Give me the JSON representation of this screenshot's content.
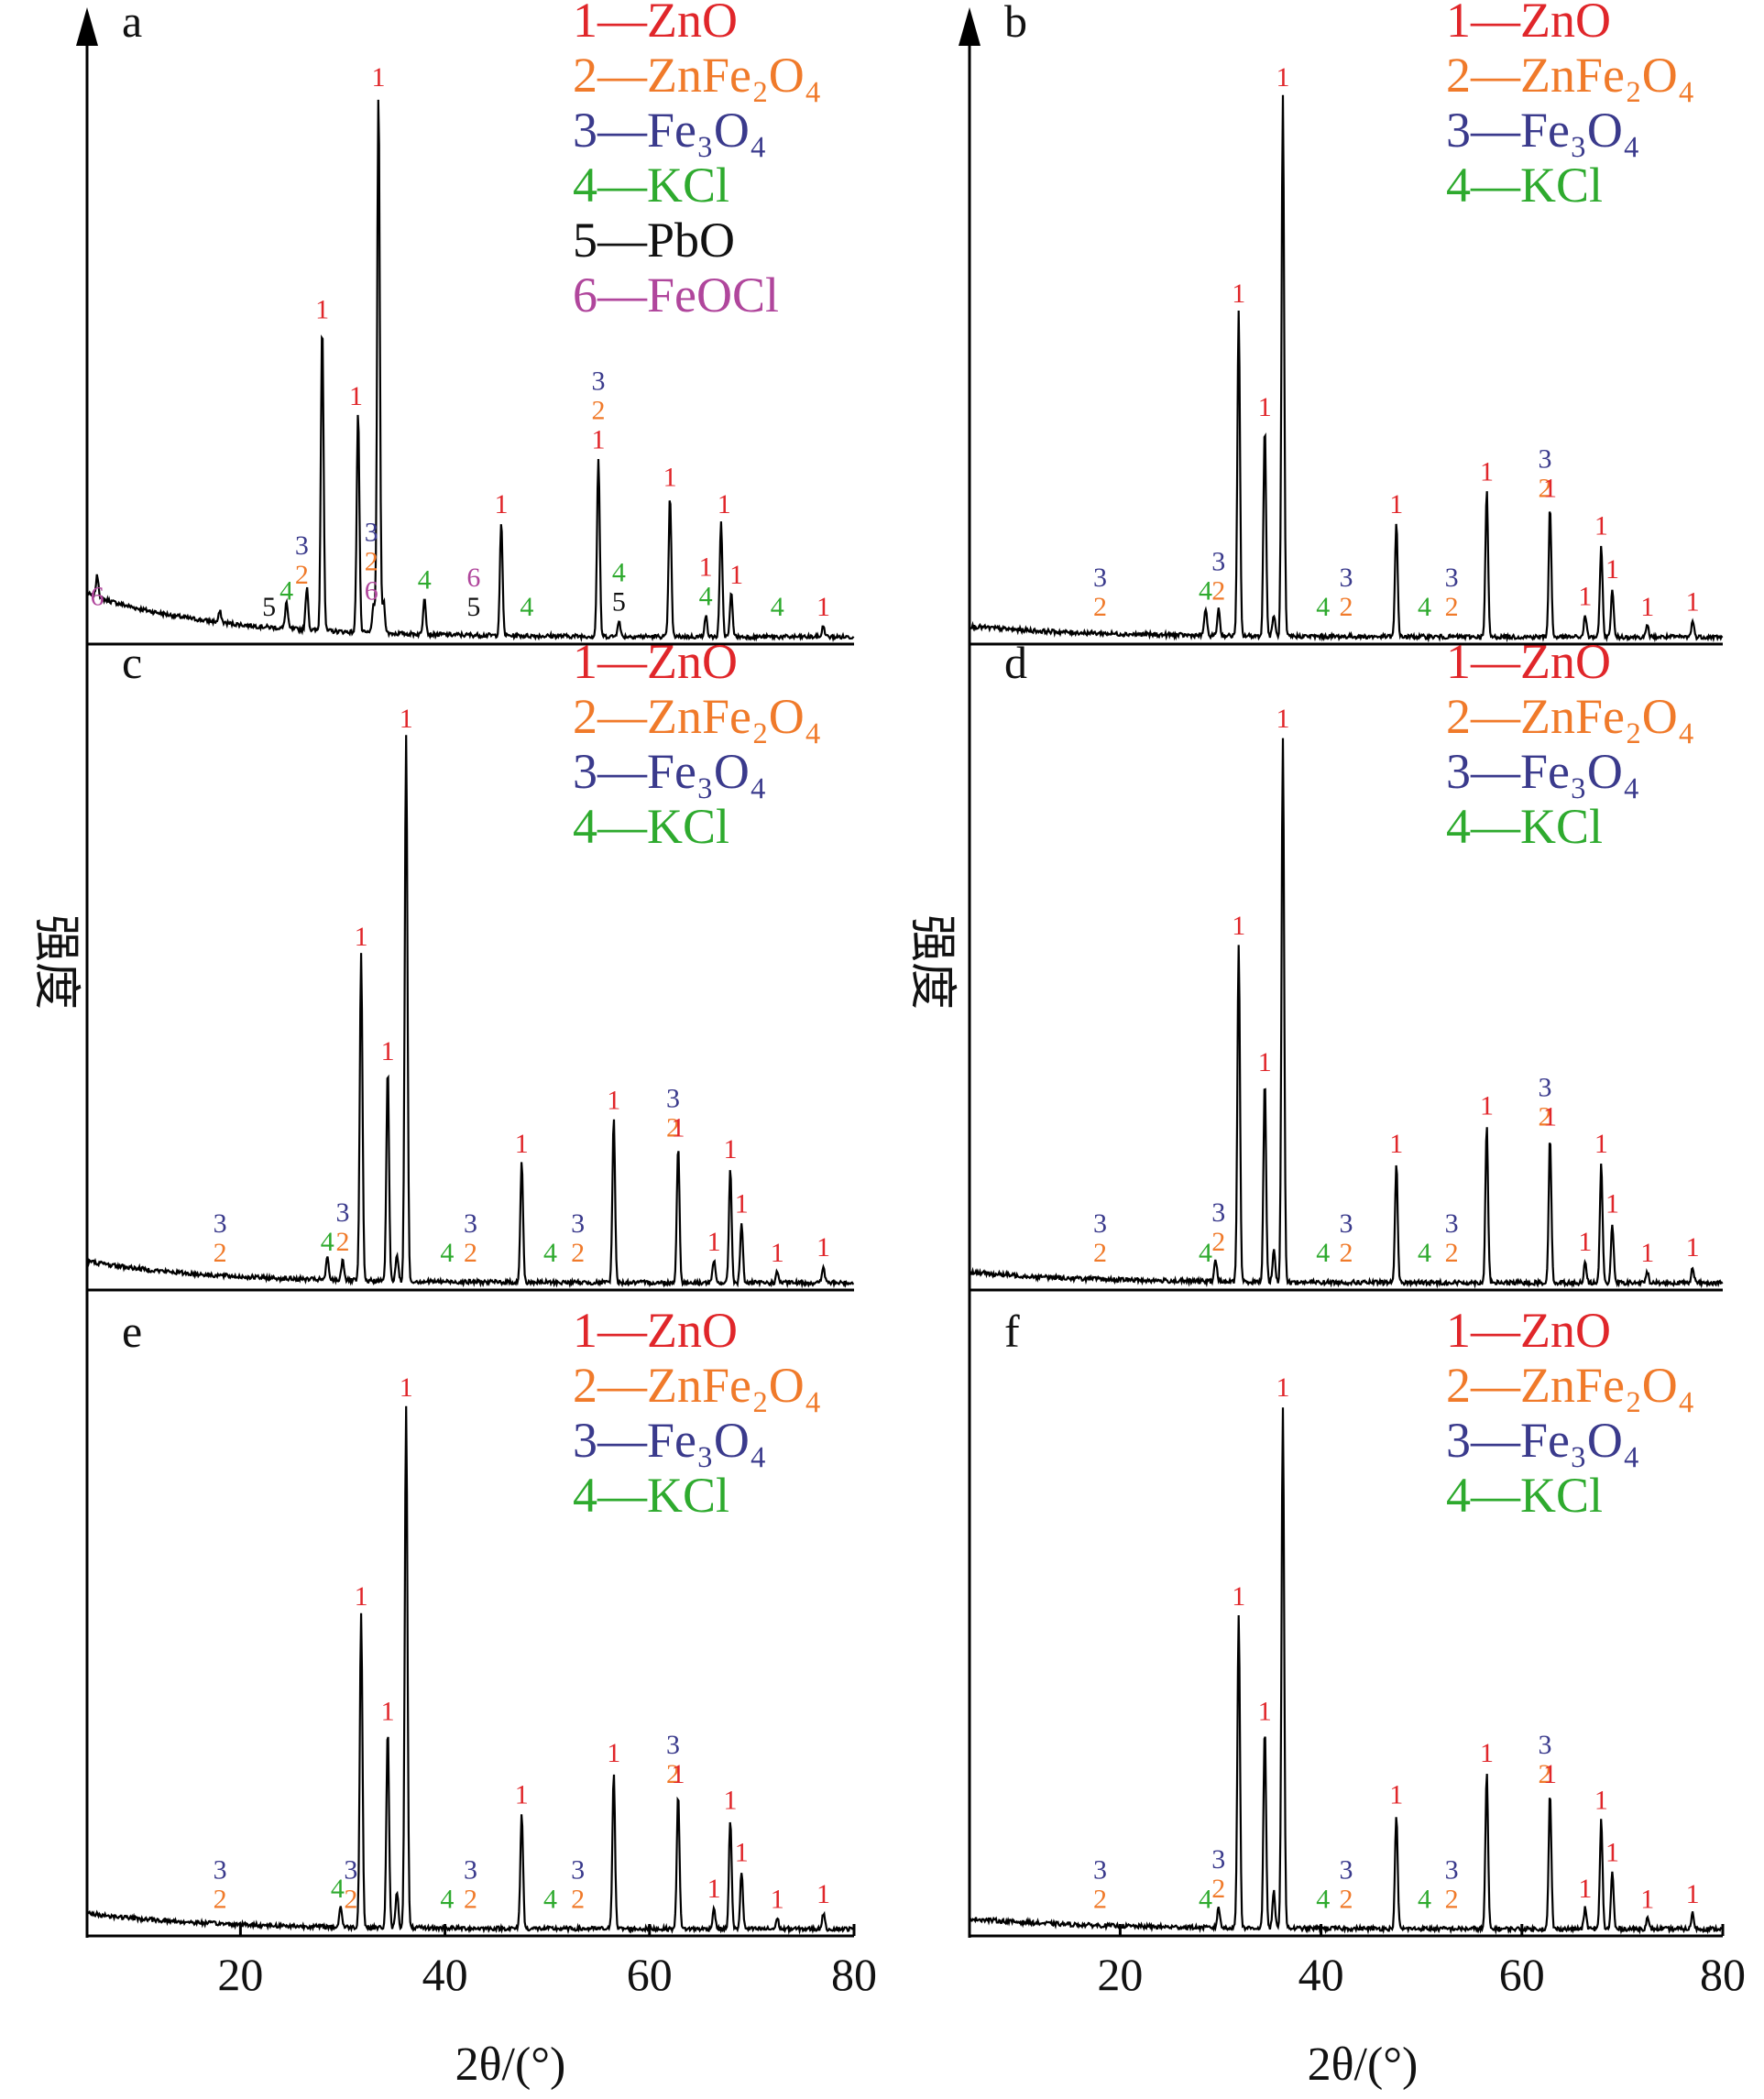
{
  "figure": {
    "y_axis_label": "强度",
    "x_axis_label": "2θ/(°)",
    "x_ticks": [
      "20",
      "40",
      "60",
      "80"
    ]
  },
  "phase_colors": {
    "1": "#e0262a",
    "2": "#f07a2a",
    "3": "#3a3a8c",
    "4": "#2eaa2e",
    "5": "#111111",
    "6": "#b0469c"
  },
  "chart_data": [
    {
      "type": "line",
      "panel": "a",
      "xlim": [
        5,
        80
      ],
      "legend": [
        {
          "id": "1",
          "text": "1—ZnO"
        },
        {
          "id": "2",
          "text": "2—ZnFe₂O₄"
        },
        {
          "id": "3",
          "text": "3—Fe₃O₄"
        },
        {
          "id": "4",
          "text": "4—KCl"
        },
        {
          "id": "5",
          "text": "5—PbO"
        },
        {
          "id": "6",
          "text": "6—FeOCl"
        }
      ],
      "peaks": [
        [
          6.0,
          0.04
        ],
        [
          18.0,
          0.02
        ],
        [
          24.5,
          0.05
        ],
        [
          26.5,
          0.08
        ],
        [
          28.0,
          0.57
        ],
        [
          31.5,
          0.41
        ],
        [
          33.0,
          0.05
        ],
        [
          33.5,
          1.0
        ],
        [
          34.0,
          0.06
        ],
        [
          38.0,
          0.07
        ],
        [
          45.5,
          0.21
        ],
        [
          55.0,
          0.33
        ],
        [
          57.0,
          0.03
        ],
        [
          62.0,
          0.26
        ],
        [
          65.5,
          0.04
        ],
        [
          67.0,
          0.21
        ],
        [
          68.0,
          0.08
        ],
        [
          77.0,
          0.02
        ]
      ],
      "background_start": 0.08,
      "labels": [
        {
          "x": 6.0,
          "stack": [
            "6"
          ]
        },
        {
          "x": 22.8,
          "stack": [
            "5"
          ]
        },
        {
          "x": 24.5,
          "stack": [
            "4"
          ]
        },
        {
          "x": 26.0,
          "stack": [
            "3",
            "2"
          ]
        },
        {
          "x": 28.0,
          "stack": [
            "1"
          ]
        },
        {
          "x": 31.3,
          "stack": [
            "1"
          ]
        },
        {
          "x": 32.8,
          "stack": [
            "3",
            "2",
            "6"
          ]
        },
        {
          "x": 33.5,
          "stack": [
            "1"
          ]
        },
        {
          "x": 38.0,
          "stack": [
            "4"
          ]
        },
        {
          "x": 42.8,
          "stack": [
            "6",
            "5"
          ]
        },
        {
          "x": 45.5,
          "stack": [
            "1"
          ]
        },
        {
          "x": 48.0,
          "stack": [
            "4"
          ]
        },
        {
          "x": 55.0,
          "stack": [
            "3",
            "2",
            "1"
          ]
        },
        {
          "x": 57.0,
          "stack": [
            "4",
            "5"
          ]
        },
        {
          "x": 62.0,
          "stack": [
            "1"
          ]
        },
        {
          "x": 65.5,
          "stack": [
            "1",
            "4"
          ]
        },
        {
          "x": 67.3,
          "stack": [
            "1"
          ]
        },
        {
          "x": 68.5,
          "stack": [
            "1"
          ]
        },
        {
          "x": 72.5,
          "stack": [
            "4"
          ]
        },
        {
          "x": 77.0,
          "stack": [
            "1"
          ]
        }
      ]
    },
    {
      "type": "line",
      "panel": "b",
      "xlim": [
        5,
        80
      ],
      "legend": [
        {
          "id": "1",
          "text": "1—ZnO"
        },
        {
          "id": "2",
          "text": "2—ZnFe₂O₄"
        },
        {
          "id": "3",
          "text": "3—Fe₃O₄"
        },
        {
          "id": "4",
          "text": "4—KCl"
        }
      ],
      "peaks": [
        [
          28.5,
          0.05
        ],
        [
          29.8,
          0.05
        ],
        [
          31.8,
          0.6
        ],
        [
          34.4,
          0.39
        ],
        [
          35.3,
          0.04
        ],
        [
          36.2,
          1.0
        ],
        [
          47.5,
          0.21
        ],
        [
          56.5,
          0.27
        ],
        [
          62.8,
          0.24
        ],
        [
          66.3,
          0.04
        ],
        [
          67.9,
          0.17
        ],
        [
          69.0,
          0.09
        ],
        [
          72.5,
          0.02
        ],
        [
          77.0,
          0.03
        ]
      ],
      "background_start": 0.02,
      "labels": [
        {
          "x": 18.0,
          "stack": [
            "3",
            "2"
          ]
        },
        {
          "x": 28.5,
          "stack": [
            "4"
          ]
        },
        {
          "x": 29.8,
          "stack": [
            "3",
            "2"
          ]
        },
        {
          "x": 31.8,
          "stack": [
            "1"
          ]
        },
        {
          "x": 34.4,
          "stack": [
            "1"
          ]
        },
        {
          "x": 36.2,
          "stack": [
            "1"
          ]
        },
        {
          "x": 40.2,
          "stack": [
            "4"
          ]
        },
        {
          "x": 42.5,
          "stack": [
            "3",
            "2"
          ]
        },
        {
          "x": 47.5,
          "stack": [
            "1"
          ]
        },
        {
          "x": 50.3,
          "stack": [
            "4"
          ]
        },
        {
          "x": 53.0,
          "stack": [
            "3",
            "2"
          ]
        },
        {
          "x": 56.5,
          "stack": [
            "1"
          ]
        },
        {
          "x": 62.3,
          "stack": [
            "3",
            "2"
          ]
        },
        {
          "x": 62.8,
          "stack": [
            "1"
          ]
        },
        {
          "x": 66.3,
          "stack": [
            "1"
          ]
        },
        {
          "x": 67.9,
          "stack": [
            "1"
          ]
        },
        {
          "x": 69.0,
          "stack": [
            "1"
          ]
        },
        {
          "x": 72.5,
          "stack": [
            "1"
          ]
        },
        {
          "x": 77.0,
          "stack": [
            "1"
          ]
        }
      ]
    },
    {
      "type": "line",
      "panel": "c",
      "xlim": [
        5,
        80
      ],
      "legend": [
        {
          "id": "1",
          "text": "1—ZnO"
        },
        {
          "id": "2",
          "text": "2—ZnFe₂O₄"
        },
        {
          "id": "3",
          "text": "3—Fe₃O₄"
        },
        {
          "id": "4",
          "text": "4—KCl"
        }
      ],
      "peaks": [
        [
          28.5,
          0.04
        ],
        [
          30.0,
          0.04
        ],
        [
          31.8,
          0.6
        ],
        [
          34.4,
          0.39
        ],
        [
          35.3,
          0.05
        ],
        [
          36.2,
          1.0
        ],
        [
          47.5,
          0.22
        ],
        [
          56.5,
          0.3
        ],
        [
          62.8,
          0.25
        ],
        [
          66.3,
          0.04
        ],
        [
          67.9,
          0.21
        ],
        [
          69.0,
          0.11
        ],
        [
          72.5,
          0.02
        ],
        [
          77.0,
          0.03
        ]
      ],
      "background_start": 0.04,
      "labels": [
        {
          "x": 18.0,
          "stack": [
            "3",
            "2"
          ]
        },
        {
          "x": 28.5,
          "stack": [
            "4"
          ]
        },
        {
          "x": 30.0,
          "stack": [
            "3",
            "2"
          ]
        },
        {
          "x": 31.8,
          "stack": [
            "1"
          ]
        },
        {
          "x": 34.4,
          "stack": [
            "1"
          ]
        },
        {
          "x": 36.2,
          "stack": [
            "1"
          ]
        },
        {
          "x": 40.2,
          "stack": [
            "4"
          ]
        },
        {
          "x": 42.5,
          "stack": [
            "3",
            "2"
          ]
        },
        {
          "x": 47.5,
          "stack": [
            "1"
          ]
        },
        {
          "x": 50.3,
          "stack": [
            "4"
          ]
        },
        {
          "x": 53.0,
          "stack": [
            "3",
            "2"
          ]
        },
        {
          "x": 56.5,
          "stack": [
            "1"
          ]
        },
        {
          "x": 62.3,
          "stack": [
            "3",
            "2"
          ]
        },
        {
          "x": 62.8,
          "stack": [
            "1"
          ]
        },
        {
          "x": 66.3,
          "stack": [
            "1"
          ]
        },
        {
          "x": 67.9,
          "stack": [
            "1"
          ]
        },
        {
          "x": 69.0,
          "stack": [
            "1"
          ]
        },
        {
          "x": 72.5,
          "stack": [
            "1"
          ]
        },
        {
          "x": 77.0,
          "stack": [
            "1"
          ]
        }
      ]
    },
    {
      "type": "line",
      "panel": "d",
      "xlim": [
        5,
        80
      ],
      "legend": [
        {
          "id": "1",
          "text": "1—ZnO"
        },
        {
          "id": "2",
          "text": "2—ZnFe₂O₄"
        },
        {
          "id": "3",
          "text": "3—Fe₃O₄"
        },
        {
          "id": "4",
          "text": "4—KCl"
        }
      ],
      "peaks": [
        [
          29.5,
          0.04
        ],
        [
          31.8,
          0.62
        ],
        [
          34.4,
          0.37
        ],
        [
          35.3,
          0.06
        ],
        [
          36.2,
          1.0
        ],
        [
          47.5,
          0.22
        ],
        [
          56.5,
          0.29
        ],
        [
          62.8,
          0.27
        ],
        [
          66.3,
          0.04
        ],
        [
          67.9,
          0.22
        ],
        [
          69.0,
          0.11
        ],
        [
          72.5,
          0.02
        ],
        [
          77.0,
          0.03
        ]
      ],
      "background_start": 0.02,
      "labels": [
        {
          "x": 18.0,
          "stack": [
            "3",
            "2"
          ]
        },
        {
          "x": 28.5,
          "stack": [
            "4"
          ]
        },
        {
          "x": 29.8,
          "stack": [
            "3",
            "2"
          ]
        },
        {
          "x": 31.8,
          "stack": [
            "1"
          ]
        },
        {
          "x": 34.4,
          "stack": [
            "1"
          ]
        },
        {
          "x": 36.2,
          "stack": [
            "1"
          ]
        },
        {
          "x": 40.2,
          "stack": [
            "4"
          ]
        },
        {
          "x": 42.5,
          "stack": [
            "3",
            "2"
          ]
        },
        {
          "x": 47.5,
          "stack": [
            "1"
          ]
        },
        {
          "x": 50.3,
          "stack": [
            "4"
          ]
        },
        {
          "x": 53.0,
          "stack": [
            "3",
            "2"
          ]
        },
        {
          "x": 56.5,
          "stack": [
            "1"
          ]
        },
        {
          "x": 62.3,
          "stack": [
            "3",
            "2"
          ]
        },
        {
          "x": 62.8,
          "stack": [
            "1"
          ]
        },
        {
          "x": 66.3,
          "stack": [
            "1"
          ]
        },
        {
          "x": 67.9,
          "stack": [
            "1"
          ]
        },
        {
          "x": 69.0,
          "stack": [
            "1"
          ]
        },
        {
          "x": 72.5,
          "stack": [
            "1"
          ]
        },
        {
          "x": 77.0,
          "stack": [
            "1"
          ]
        }
      ]
    },
    {
      "type": "line",
      "panel": "e",
      "xlim": [
        5,
        80
      ],
      "legend": [
        {
          "id": "1",
          "text": "1—ZnO"
        },
        {
          "id": "2",
          "text": "2—ZnFe₂O₄"
        },
        {
          "id": "3",
          "text": "3—Fe₃O₄"
        },
        {
          "id": "4",
          "text": "4—KCl"
        }
      ],
      "peaks": [
        [
          29.8,
          0.04
        ],
        [
          31.8,
          0.6
        ],
        [
          34.4,
          0.38
        ],
        [
          35.3,
          0.07
        ],
        [
          36.2,
          1.0
        ],
        [
          47.5,
          0.22
        ],
        [
          56.5,
          0.3
        ],
        [
          62.8,
          0.26
        ],
        [
          66.3,
          0.04
        ],
        [
          67.9,
          0.21
        ],
        [
          69.0,
          0.11
        ],
        [
          72.5,
          0.02
        ],
        [
          77.0,
          0.03
        ]
      ],
      "background_start": 0.03,
      "labels": [
        {
          "x": 18.0,
          "stack": [
            "3",
            "2"
          ]
        },
        {
          "x": 29.5,
          "stack": [
            "4"
          ]
        },
        {
          "x": 30.8,
          "stack": [
            "3",
            "2"
          ]
        },
        {
          "x": 31.8,
          "stack": [
            "1"
          ]
        },
        {
          "x": 34.4,
          "stack": [
            "1"
          ]
        },
        {
          "x": 36.2,
          "stack": [
            "1"
          ]
        },
        {
          "x": 40.2,
          "stack": [
            "4"
          ]
        },
        {
          "x": 42.5,
          "stack": [
            "3",
            "2"
          ]
        },
        {
          "x": 47.5,
          "stack": [
            "1"
          ]
        },
        {
          "x": 50.3,
          "stack": [
            "4"
          ]
        },
        {
          "x": 53.0,
          "stack": [
            "3",
            "2"
          ]
        },
        {
          "x": 56.5,
          "stack": [
            "1"
          ]
        },
        {
          "x": 62.3,
          "stack": [
            "3",
            "2"
          ]
        },
        {
          "x": 62.8,
          "stack": [
            "1"
          ]
        },
        {
          "x": 66.3,
          "stack": [
            "1"
          ]
        },
        {
          "x": 67.9,
          "stack": [
            "1"
          ]
        },
        {
          "x": 69.0,
          "stack": [
            "1"
          ]
        },
        {
          "x": 72.5,
          "stack": [
            "1"
          ]
        },
        {
          "x": 77.0,
          "stack": [
            "1"
          ]
        }
      ]
    },
    {
      "type": "line",
      "panel": "f",
      "xlim": [
        5,
        80
      ],
      "legend": [
        {
          "id": "1",
          "text": "1—ZnO"
        },
        {
          "id": "2",
          "text": "2—ZnFe₂O₄"
        },
        {
          "id": "3",
          "text": "3—Fe₃O₄"
        },
        {
          "id": "4",
          "text": "4—KCl"
        }
      ],
      "peaks": [
        [
          29.8,
          0.04
        ],
        [
          31.8,
          0.6
        ],
        [
          34.4,
          0.38
        ],
        [
          35.3,
          0.07
        ],
        [
          36.2,
          1.0
        ],
        [
          47.5,
          0.22
        ],
        [
          56.5,
          0.3
        ],
        [
          62.8,
          0.26
        ],
        [
          66.3,
          0.04
        ],
        [
          67.9,
          0.21
        ],
        [
          69.0,
          0.11
        ],
        [
          72.5,
          0.02
        ],
        [
          77.0,
          0.03
        ]
      ],
      "background_start": 0.02,
      "labels": [
        {
          "x": 18.0,
          "stack": [
            "3",
            "2"
          ]
        },
        {
          "x": 28.5,
          "stack": [
            "4"
          ]
        },
        {
          "x": 29.8,
          "stack": [
            "3",
            "2"
          ]
        },
        {
          "x": 31.8,
          "stack": [
            "1"
          ]
        },
        {
          "x": 34.4,
          "stack": [
            "1"
          ]
        },
        {
          "x": 36.2,
          "stack": [
            "1"
          ]
        },
        {
          "x": 40.2,
          "stack": [
            "4"
          ]
        },
        {
          "x": 42.5,
          "stack": [
            "3",
            "2"
          ]
        },
        {
          "x": 47.5,
          "stack": [
            "1"
          ]
        },
        {
          "x": 50.3,
          "stack": [
            "4"
          ]
        },
        {
          "x": 53.0,
          "stack": [
            "3",
            "2"
          ]
        },
        {
          "x": 56.5,
          "stack": [
            "1"
          ]
        },
        {
          "x": 62.3,
          "stack": [
            "3",
            "2"
          ]
        },
        {
          "x": 62.8,
          "stack": [
            "1"
          ]
        },
        {
          "x": 66.3,
          "stack": [
            "1"
          ]
        },
        {
          "x": 67.9,
          "stack": [
            "1"
          ]
        },
        {
          "x": 69.0,
          "stack": [
            "1"
          ]
        },
        {
          "x": 72.5,
          "stack": [
            "1"
          ]
        },
        {
          "x": 77.0,
          "stack": [
            "1"
          ]
        }
      ]
    }
  ]
}
